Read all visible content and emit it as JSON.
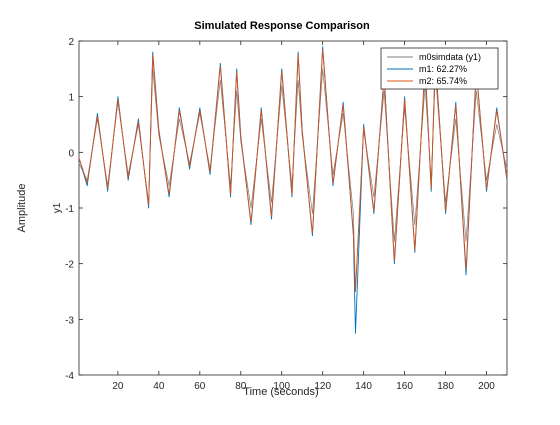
{
  "chart_data": {
    "type": "line",
    "title": "Simulated Response Comparison",
    "xlabel": "Time (seconds)",
    "ylabel_outer": "Amplitude",
    "ylabel_inner": "y1",
    "xlim": [
      1,
      210
    ],
    "ylim": [
      -4,
      2
    ],
    "xticks": [
      20,
      40,
      60,
      80,
      100,
      120,
      140,
      160,
      180,
      200
    ],
    "yticks": [
      2,
      1,
      0,
      -1,
      -2,
      -3,
      -4
    ],
    "grid": false,
    "legend_position": "top-right",
    "series": [
      {
        "name": "m0simdata (y1)",
        "color": "#7f7f7f",
        "x": [
          1,
          5,
          10,
          15,
          20,
          25,
          30,
          35,
          37,
          40,
          45,
          50,
          55,
          60,
          65,
          70,
          75,
          78,
          80,
          85,
          90,
          95,
          100,
          105,
          108,
          110,
          115,
          120,
          125,
          130,
          135,
          136,
          140,
          145,
          150,
          155,
          160,
          165,
          170,
          173,
          175,
          180,
          185,
          190,
          195,
          200,
          205,
          210
        ],
        "y": [
          -0.2,
          -0.5,
          0.6,
          -0.6,
          0.9,
          -0.4,
          0.5,
          -0.9,
          1.5,
          0.3,
          -0.6,
          0.6,
          -0.2,
          0.7,
          -0.3,
          1.3,
          -0.6,
          1.1,
          0.2,
          -1.0,
          0.6,
          -0.9,
          1.2,
          -0.6,
          1.3,
          0.3,
          -1.1,
          1.5,
          -0.4,
          0.7,
          -1.1,
          -2.5,
          0.4,
          -0.8,
          1.1,
          -1.6,
          0.8,
          -1.3,
          1.2,
          -0.5,
          1.4,
          -0.9,
          0.6,
          -1.6,
          1.1,
          -0.5,
          0.5,
          -0.3
        ]
      },
      {
        "name": "m1: 62.27%",
        "color": "#0072bd",
        "x": [
          1,
          5,
          10,
          15,
          20,
          25,
          30,
          35,
          37,
          40,
          45,
          50,
          55,
          60,
          65,
          70,
          75,
          78,
          80,
          85,
          90,
          95,
          100,
          105,
          108,
          110,
          115,
          120,
          125,
          130,
          135,
          136,
          140,
          145,
          150,
          155,
          160,
          165,
          170,
          173,
          175,
          180,
          185,
          190,
          195,
          200,
          205,
          210
        ],
        "y": [
          -0.1,
          -0.6,
          0.7,
          -0.7,
          1.0,
          -0.5,
          0.6,
          -1.0,
          1.8,
          0.4,
          -0.8,
          0.8,
          -0.3,
          0.8,
          -0.4,
          1.6,
          -0.8,
          1.5,
          0.3,
          -1.3,
          0.8,
          -1.2,
          1.5,
          -0.8,
          1.8,
          0.4,
          -1.5,
          1.9,
          -0.6,
          0.9,
          -1.5,
          -3.25,
          0.5,
          -1.1,
          1.4,
          -2.0,
          1.0,
          -1.8,
          1.6,
          -0.7,
          1.7,
          -1.1,
          0.9,
          -2.2,
          1.5,
          -0.7,
          0.8,
          -0.5
        ]
      },
      {
        "name": "m2: 65.74%",
        "color": "#d95319",
        "x": [
          1,
          5,
          10,
          15,
          20,
          25,
          30,
          35,
          37,
          40,
          45,
          50,
          55,
          60,
          65,
          70,
          75,
          78,
          80,
          85,
          90,
          95,
          100,
          105,
          108,
          110,
          115,
          120,
          125,
          130,
          135,
          136,
          140,
          145,
          150,
          155,
          160,
          165,
          170,
          173,
          175,
          180,
          185,
          190,
          195,
          200,
          205,
          210
        ],
        "y": [
          -0.1,
          -0.55,
          0.65,
          -0.65,
          0.95,
          -0.45,
          0.55,
          -0.95,
          1.75,
          0.35,
          -0.75,
          0.75,
          -0.25,
          0.75,
          -0.35,
          1.55,
          -0.75,
          1.45,
          0.25,
          -1.25,
          0.75,
          -1.15,
          1.45,
          -0.75,
          1.75,
          0.35,
          -1.45,
          1.85,
          -0.55,
          0.85,
          -1.45,
          -2.5,
          0.45,
          -1.05,
          1.35,
          -1.95,
          0.95,
          -1.75,
          1.55,
          -0.65,
          1.65,
          -1.05,
          0.85,
          -2.1,
          1.45,
          -0.65,
          0.75,
          -0.45
        ]
      }
    ]
  }
}
